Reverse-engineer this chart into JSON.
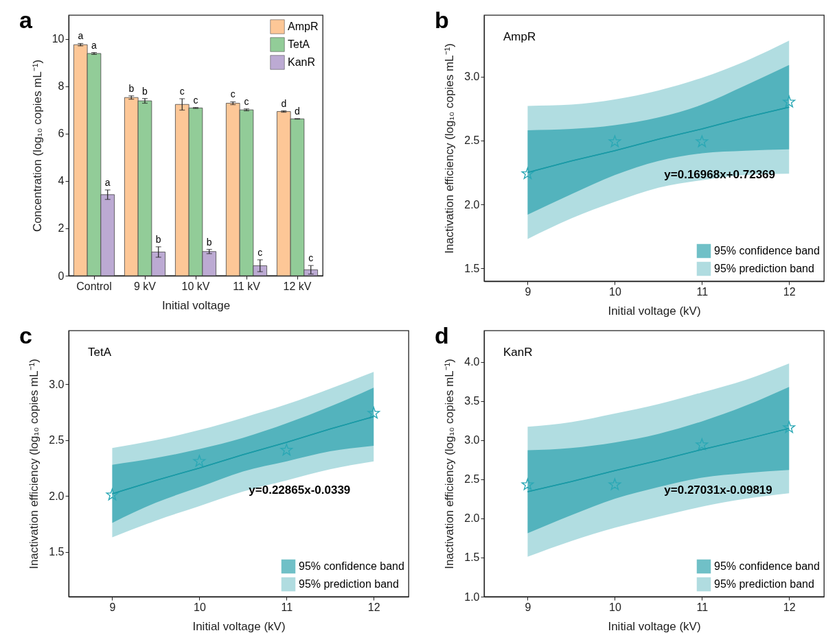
{
  "chart_data": [
    {
      "type": "bar",
      "annotations": [
        "a"
      ],
      "xlabel": "Initial voltage",
      "ylabel": "Concentration (log₁₀ copies mL⁻¹)",
      "categories": [
        "Control",
        "9 kV",
        "10 kV",
        "11 kV",
        "12 kV"
      ],
      "ylim": [
        0,
        11
      ],
      "yticks": [
        0,
        2,
        4,
        6,
        8,
        10
      ],
      "legend": "top right",
      "series": [
        {
          "name": "AmpR",
          "color": "#fdc797",
          "values": [
            9.75,
            7.52,
            7.23,
            7.28,
            6.93
          ],
          "errors": [
            0.05,
            0.07,
            0.24,
            0.06,
            0.03
          ],
          "value_labels": [
            "a",
            "b",
            "c",
            "c",
            "d"
          ]
        },
        {
          "name": "TetA",
          "color": "#92cc98",
          "values": [
            9.38,
            7.38,
            7.08,
            7.0,
            6.62
          ],
          "errors": [
            0.04,
            0.1,
            0.02,
            0.04,
            0.01
          ],
          "value_labels": [
            "a",
            "b",
            "c",
            "c",
            "d"
          ]
        },
        {
          "name": "KanR",
          "color": "#bcaad3",
          "values": [
            3.42,
            1.0,
            1.02,
            0.42,
            0.25
          ],
          "errors": [
            0.2,
            0.22,
            0.09,
            0.25,
            0.18
          ],
          "value_labels": [
            "a",
            "b",
            "b",
            "c",
            "c"
          ]
        }
      ]
    },
    {
      "type": "scatter",
      "title": "AmpR",
      "annotations": [
        "b",
        "y=0.16968x+0.72369"
      ],
      "xlabel": "Initial voltage (kV)",
      "ylabel": "Inactivation efficiency (log₁₀ copies mL⁻¹)",
      "xlim": [
        8.5,
        12.4
      ],
      "xticks": [
        9,
        10,
        11,
        12
      ],
      "ylim": [
        1.4,
        3.48
      ],
      "yticks": [
        1.5,
        {
          "value": 2,
          "label": "2.0"
        },
        2.5,
        {
          "value": 3,
          "label": "3.0"
        }
      ],
      "legend": "bottom right",
      "series": [
        {
          "type": "line",
          "name": "95% confidence band",
          "color": "#1a9aa6",
          "x": [
            9,
            9.5,
            10,
            10.5,
            11,
            11.5,
            12
          ],
          "values": [
            2.25,
            2.34,
            2.42,
            2.51,
            2.59,
            2.68,
            2.76
          ],
          "lower": [
            1.92,
            2.08,
            2.23,
            2.34,
            2.4,
            2.42,
            2.43
          ],
          "upper": [
            2.58,
            2.59,
            2.62,
            2.68,
            2.78,
            2.93,
            3.09
          ]
        },
        {
          "type": "line",
          "name": "95% prediction band",
          "color": "#1a9aa6",
          "x": [
            9,
            9.5,
            10,
            10.5,
            11,
            11.5,
            12
          ],
          "values": [
            2.25,
            2.34,
            2.42,
            2.51,
            2.59,
            2.68,
            2.76
          ],
          "lower": [
            1.73,
            1.89,
            2.02,
            2.13,
            2.19,
            2.23,
            2.24
          ],
          "upper": [
            2.77,
            2.78,
            2.82,
            2.89,
            2.99,
            3.12,
            3.28
          ]
        },
        {
          "type": "scatter",
          "color": "#2ba8b5",
          "marker": "star",
          "x": [
            9,
            10,
            11,
            12
          ],
          "values": [
            2.24,
            2.49,
            2.49,
            2.8
          ]
        }
      ]
    },
    {
      "type": "scatter",
      "title": "TetA",
      "annotations": [
        "c",
        "y=0.22865x-0.0339"
      ],
      "xlabel": "Initial voltage (kV)",
      "ylabel": "Inactivation efficiency (log₁₀ copies mL⁻¹)",
      "xlim": [
        8.5,
        12.4
      ],
      "xticks": [
        9,
        10,
        11,
        12
      ],
      "ylim": [
        1.1,
        3.48
      ],
      "yticks": [
        1.5,
        {
          "value": 2,
          "label": "2.0"
        },
        2.5,
        {
          "value": 3,
          "label": "3.0"
        }
      ],
      "legend": "bottom right",
      "series": [
        {
          "type": "line",
          "name": "95% confidence band",
          "color": "#1a9aa6",
          "x": [
            9,
            9.5,
            10,
            10.5,
            11,
            11.5,
            12
          ],
          "values": [
            2.02,
            2.14,
            2.25,
            2.37,
            2.48,
            2.6,
            2.71
          ],
          "lower": [
            1.76,
            1.94,
            2.08,
            2.22,
            2.31,
            2.4,
            2.45
          ],
          "upper": [
            2.28,
            2.34,
            2.42,
            2.52,
            2.65,
            2.8,
            2.97
          ]
        },
        {
          "type": "line",
          "name": "95% prediction band",
          "color": "#1a9aa6",
          "x": [
            9,
            9.5,
            10,
            10.5,
            11,
            11.5,
            12
          ],
          "values": [
            2.02,
            2.14,
            2.25,
            2.37,
            2.48,
            2.6,
            2.71
          ],
          "lower": [
            1.63,
            1.78,
            1.91,
            2.04,
            2.14,
            2.24,
            2.31
          ],
          "upper": [
            2.43,
            2.5,
            2.59,
            2.7,
            2.82,
            2.96,
            3.11
          ]
        },
        {
          "type": "scatter",
          "color": "#2ba8b5",
          "marker": "star",
          "x": [
            9,
            10,
            11,
            12
          ],
          "values": [
            2.01,
            2.31,
            2.41,
            2.74
          ]
        }
      ]
    },
    {
      "type": "scatter",
      "title": "KanR",
      "annotations": [
        "d",
        "y=0.27031x-0.09819"
      ],
      "xlabel": "Initial voltage (kV)",
      "ylabel": "Inactivation efficiency (log₁₀ copies mL⁻¹)",
      "xlim": [
        8.5,
        12.4
      ],
      "xticks": [
        9,
        10,
        11,
        12
      ],
      "ylim": [
        1.0,
        4.4
      ],
      "yticks": [
        {
          "value": 1,
          "label": "1.0"
        },
        1.5,
        {
          "value": 2,
          "label": "2.0"
        },
        2.5,
        {
          "value": 3,
          "label": "3.0"
        },
        3.5,
        {
          "value": 4,
          "label": "4.0"
        }
      ],
      "legend": "bottom right",
      "series": [
        {
          "type": "line",
          "name": "95% confidence band",
          "color": "#1a9aa6",
          "x": [
            9,
            9.5,
            10,
            10.5,
            11,
            11.5,
            12
          ],
          "values": [
            2.34,
            2.47,
            2.61,
            2.74,
            2.88,
            3.01,
            3.15
          ],
          "lower": [
            1.81,
            2.04,
            2.25,
            2.4,
            2.52,
            2.58,
            2.62
          ],
          "upper": [
            2.87,
            2.9,
            2.97,
            3.08,
            3.24,
            3.44,
            3.68
          ]
        },
        {
          "type": "line",
          "name": "95% prediction band",
          "color": "#1a9aa6",
          "x": [
            9,
            9.5,
            10,
            10.5,
            11,
            11.5,
            12
          ],
          "values": [
            2.34,
            2.47,
            2.61,
            2.74,
            2.88,
            3.01,
            3.15
          ],
          "lower": [
            1.51,
            1.71,
            1.88,
            2.02,
            2.15,
            2.25,
            2.32
          ],
          "upper": [
            3.17,
            3.23,
            3.34,
            3.46,
            3.61,
            3.77,
            3.98
          ]
        },
        {
          "type": "scatter",
          "color": "#2ba8b5",
          "marker": "star",
          "x": [
            9,
            10,
            11,
            12
          ],
          "values": [
            2.43,
            2.43,
            2.94,
            3.16
          ]
        }
      ]
    }
  ]
}
